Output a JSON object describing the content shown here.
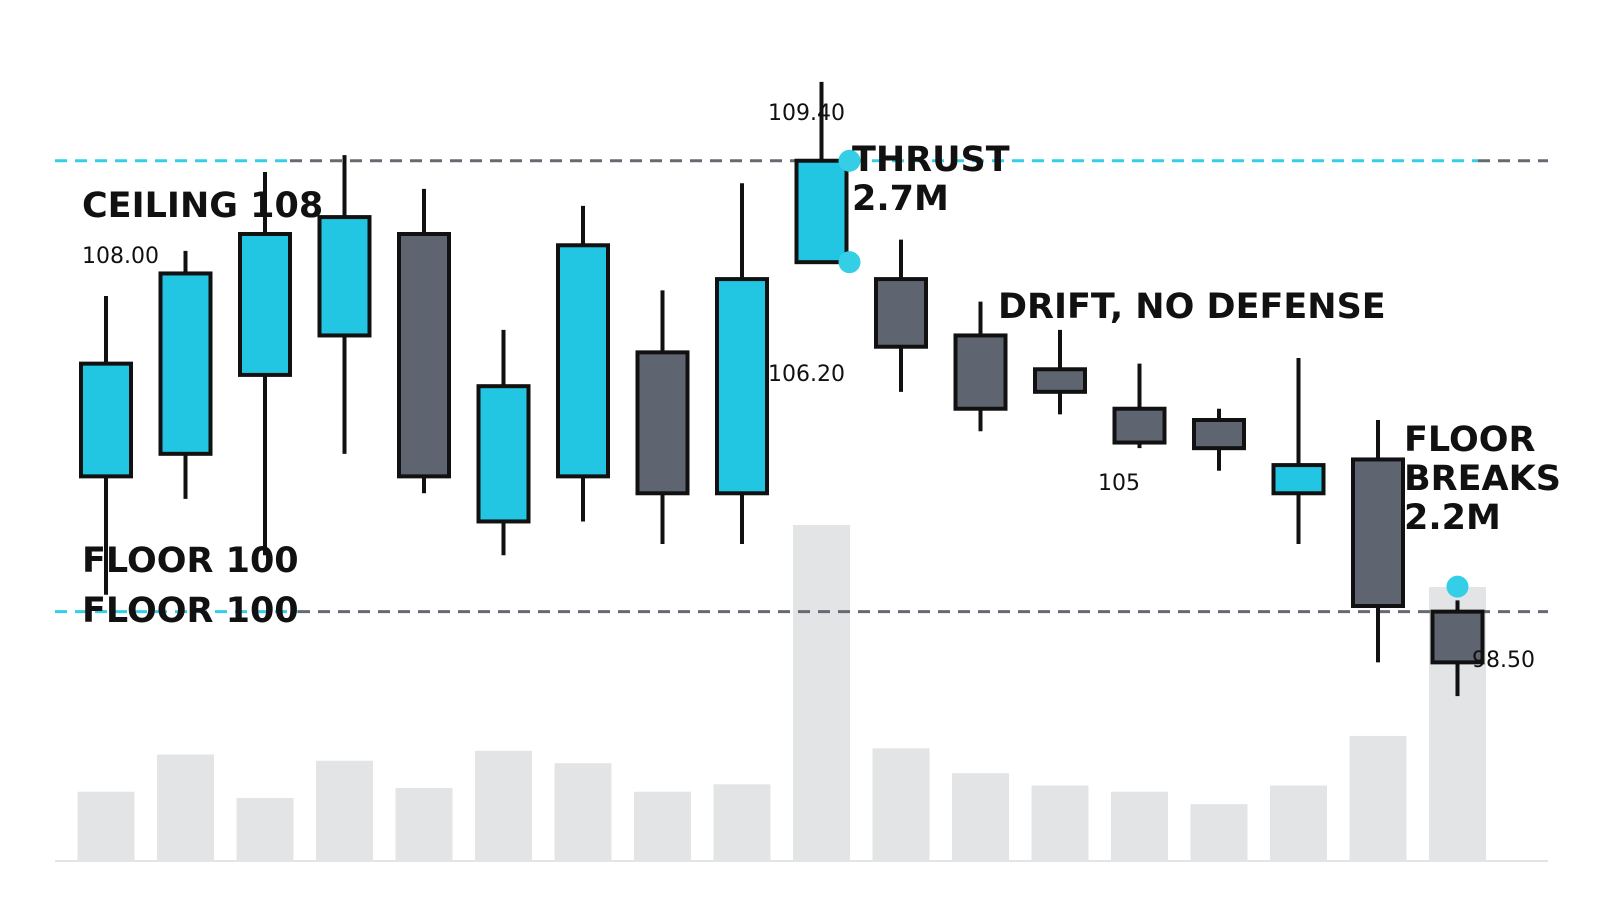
{
  "chart_data": {
    "type": "candlestick",
    "candles": [
      {
        "open": 102.4,
        "high": 105.6,
        "low": 100.3,
        "close": 104.4
      },
      {
        "open": 102.8,
        "high": 106.4,
        "low": 102.0,
        "close": 106.0
      },
      {
        "open": 104.2,
        "high": 107.8,
        "low": 101.0,
        "close": 106.7
      },
      {
        "open": 104.9,
        "high": 108.1,
        "low": 102.8,
        "close": 107.0
      },
      {
        "open": 106.7,
        "high": 107.5,
        "low": 102.1,
        "close": 102.4
      },
      {
        "open": 101.6,
        "high": 105.0,
        "low": 101.0,
        "close": 104.0
      },
      {
        "open": 102.4,
        "high": 107.2,
        "low": 101.6,
        "close": 106.5
      },
      {
        "open": 104.6,
        "high": 105.7,
        "low": 101.2,
        "close": 102.1
      },
      {
        "open": 102.1,
        "high": 107.6,
        "low": 101.2,
        "close": 105.9
      },
      {
        "open": 106.2,
        "high": 109.4,
        "low": 106.2,
        "close": 108.0
      },
      {
        "open": 105.9,
        "high": 106.6,
        "low": 103.9,
        "close": 104.7
      },
      {
        "open": 104.9,
        "high": 105.5,
        "low": 103.2,
        "close": 103.6
      },
      {
        "open": 104.3,
        "high": 105.0,
        "low": 103.5,
        "close": 103.9
      },
      {
        "open": 103.6,
        "high": 104.4,
        "low": 102.9,
        "close": 103.0
      },
      {
        "open": 103.4,
        "high": 103.6,
        "low": 102.5,
        "close": 102.9
      },
      {
        "open": 102.1,
        "high": 104.5,
        "low": 101.2,
        "close": 102.6
      },
      {
        "open": 102.7,
        "high": 103.4,
        "low": 99.1,
        "close": 100.1
      },
      {
        "open": 100.0,
        "high": 100.2,
        "low": 98.5,
        "close": 99.1
      }
    ],
    "volume": [
      0.55,
      0.85,
      0.5,
      0.8,
      0.58,
      0.88,
      0.78,
      0.55,
      0.61,
      2.7,
      0.9,
      0.7,
      0.6,
      0.55,
      0.45,
      0.6,
      1.0,
      2.2
    ],
    "ylim": [
      97.9,
      110.0
    ],
    "ceiling": 108,
    "floor": 100,
    "colors": {
      "up": "#22c6e3",
      "down": "#5f6570",
      "outline": "#111111",
      "volume": "#e3e4e6",
      "level_highlight": "#34cfe6",
      "level_line": "#666a72"
    },
    "labels": {
      "ceiling_label": "CEILING 108",
      "floor_label_top": "FLOOR 100",
      "floor_label_bottom": "FLOOR 100",
      "price_108": "108.00",
      "thrust_high": "109.40",
      "thrust_low": "106.20",
      "thrust_line1": "THRUST",
      "thrust_line2": "2.7M",
      "drift": "DRIFT, NO DEFENSE",
      "price_105": "105",
      "floor_break_line1": "FLOOR",
      "floor_break_line2": "BREAKS",
      "floor_break_line3": "2.2M",
      "price_98_50": "98.50"
    }
  }
}
